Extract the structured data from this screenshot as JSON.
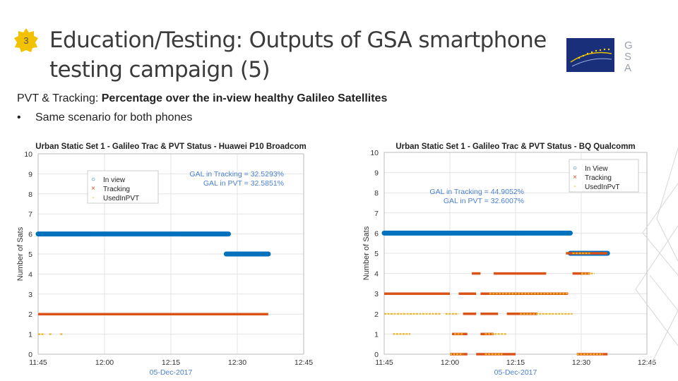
{
  "slide": {
    "number": "3",
    "title": "Education/Testing: Outputs of GSA smartphone testing campaign (5)",
    "subtitle_prefix": "PVT & Tracking: ",
    "subtitle_bold": "Percentage over the in-view healthy Galileo Satellites",
    "bullet": "Same scenario for both phones",
    "logo_letters": [
      "G",
      "S",
      "A"
    ]
  },
  "colors": {
    "in_view": "#0072bd",
    "tracking": "#d95319",
    "used_pvt": "#edb120",
    "annotation": "#4a7fd0",
    "title_text": "#3b3b3b"
  },
  "chart_data": [
    {
      "type": "scatter",
      "title": "Urban Static Set 1 - Galileo Trac & PVT Status - Huawei P10 Broadcom",
      "ylabel": "Number of Sats",
      "xlabel": "05-Dec-2017",
      "xticks": [
        "11:45",
        "12:00",
        "12:15",
        "12:30",
        "12:45"
      ],
      "xlim": [
        0,
        60
      ],
      "ylim": [
        0,
        10
      ],
      "yticks": [
        0,
        1,
        2,
        3,
        4,
        5,
        6,
        7,
        8,
        9,
        10
      ],
      "grid": true,
      "legend": {
        "placement": "top-left",
        "entries": [
          "In view",
          "Tracking",
          "UsedInPVT"
        ]
      },
      "annotations": [
        "GAL in Tracking = 32.5293%",
        "GAL in PVT = 32.5851%"
      ],
      "series": [
        {
          "name": "In view",
          "segments": [
            [
              0,
              43,
              6
            ],
            [
              42.5,
              52,
              5
            ]
          ]
        },
        {
          "name": "Tracking",
          "segments": [
            [
              0,
              52,
              2
            ]
          ]
        },
        {
          "name": "UsedInPVT",
          "segments": [
            [
              0,
              1.5,
              1
            ],
            [
              2.5,
              3,
              1
            ],
            [
              5,
              5.5,
              1
            ]
          ]
        }
      ]
    },
    {
      "type": "scatter",
      "title": "Urban Static Set 1 - Galileo Trac & PVT Status - BQ Qualcomm",
      "ylabel": "Number of Sats",
      "xlabel": "05-Dec-2017",
      "xticks": [
        "11:45",
        "12:00",
        "12:15",
        "12:30",
        "12:45"
      ],
      "xlim": [
        0,
        60
      ],
      "ylim": [
        0,
        10
      ],
      "yticks": [
        0,
        1,
        2,
        3,
        4,
        5,
        6,
        7,
        8,
        9,
        10
      ],
      "grid": true,
      "legend": {
        "placement": "top-right",
        "entries": [
          "In View",
          "Tracking",
          "UsedInPvT"
        ]
      },
      "annotations": [
        "GAL in Tracking = 44.9052%",
        "GAL in PVT = 32.6007%"
      ],
      "series": [
        {
          "name": "In View",
          "segments": [
            [
              0,
              42.5,
              6
            ],
            [
              42.5,
              51,
              5
            ]
          ]
        },
        {
          "name": "Tracking",
          "segments": [
            [
              0,
              15,
              3
            ],
            [
              17,
              21,
              3
            ],
            [
              22,
              42,
              3
            ],
            [
              20,
              22,
              4
            ],
            [
              25,
              37,
              4
            ],
            [
              41.5,
              51,
              5
            ],
            [
              43,
              47,
              4
            ],
            [
              18,
              21,
              2
            ],
            [
              22,
              26,
              2
            ],
            [
              28,
              35,
              2
            ],
            [
              15.5,
              19,
              1
            ],
            [
              22,
              25,
              1
            ],
            [
              15,
              19,
              0
            ],
            [
              21,
              30,
              0
            ],
            [
              44,
              51,
              0
            ]
          ]
        },
        {
          "name": "UsedInPvT",
          "segments": [
            [
              0,
              13,
              2
            ],
            [
              14,
              17,
              2
            ],
            [
              24,
              42,
              3
            ],
            [
              2,
              6,
              1
            ],
            [
              16,
              18,
              1
            ],
            [
              23,
              28,
              1
            ],
            [
              31,
              43,
              2
            ],
            [
              43,
              47,
              5
            ],
            [
              45,
              48,
              4
            ],
            [
              15,
              18,
              0
            ],
            [
              23,
              27,
              0
            ],
            [
              44,
              50,
              0
            ]
          ]
        }
      ]
    }
  ]
}
